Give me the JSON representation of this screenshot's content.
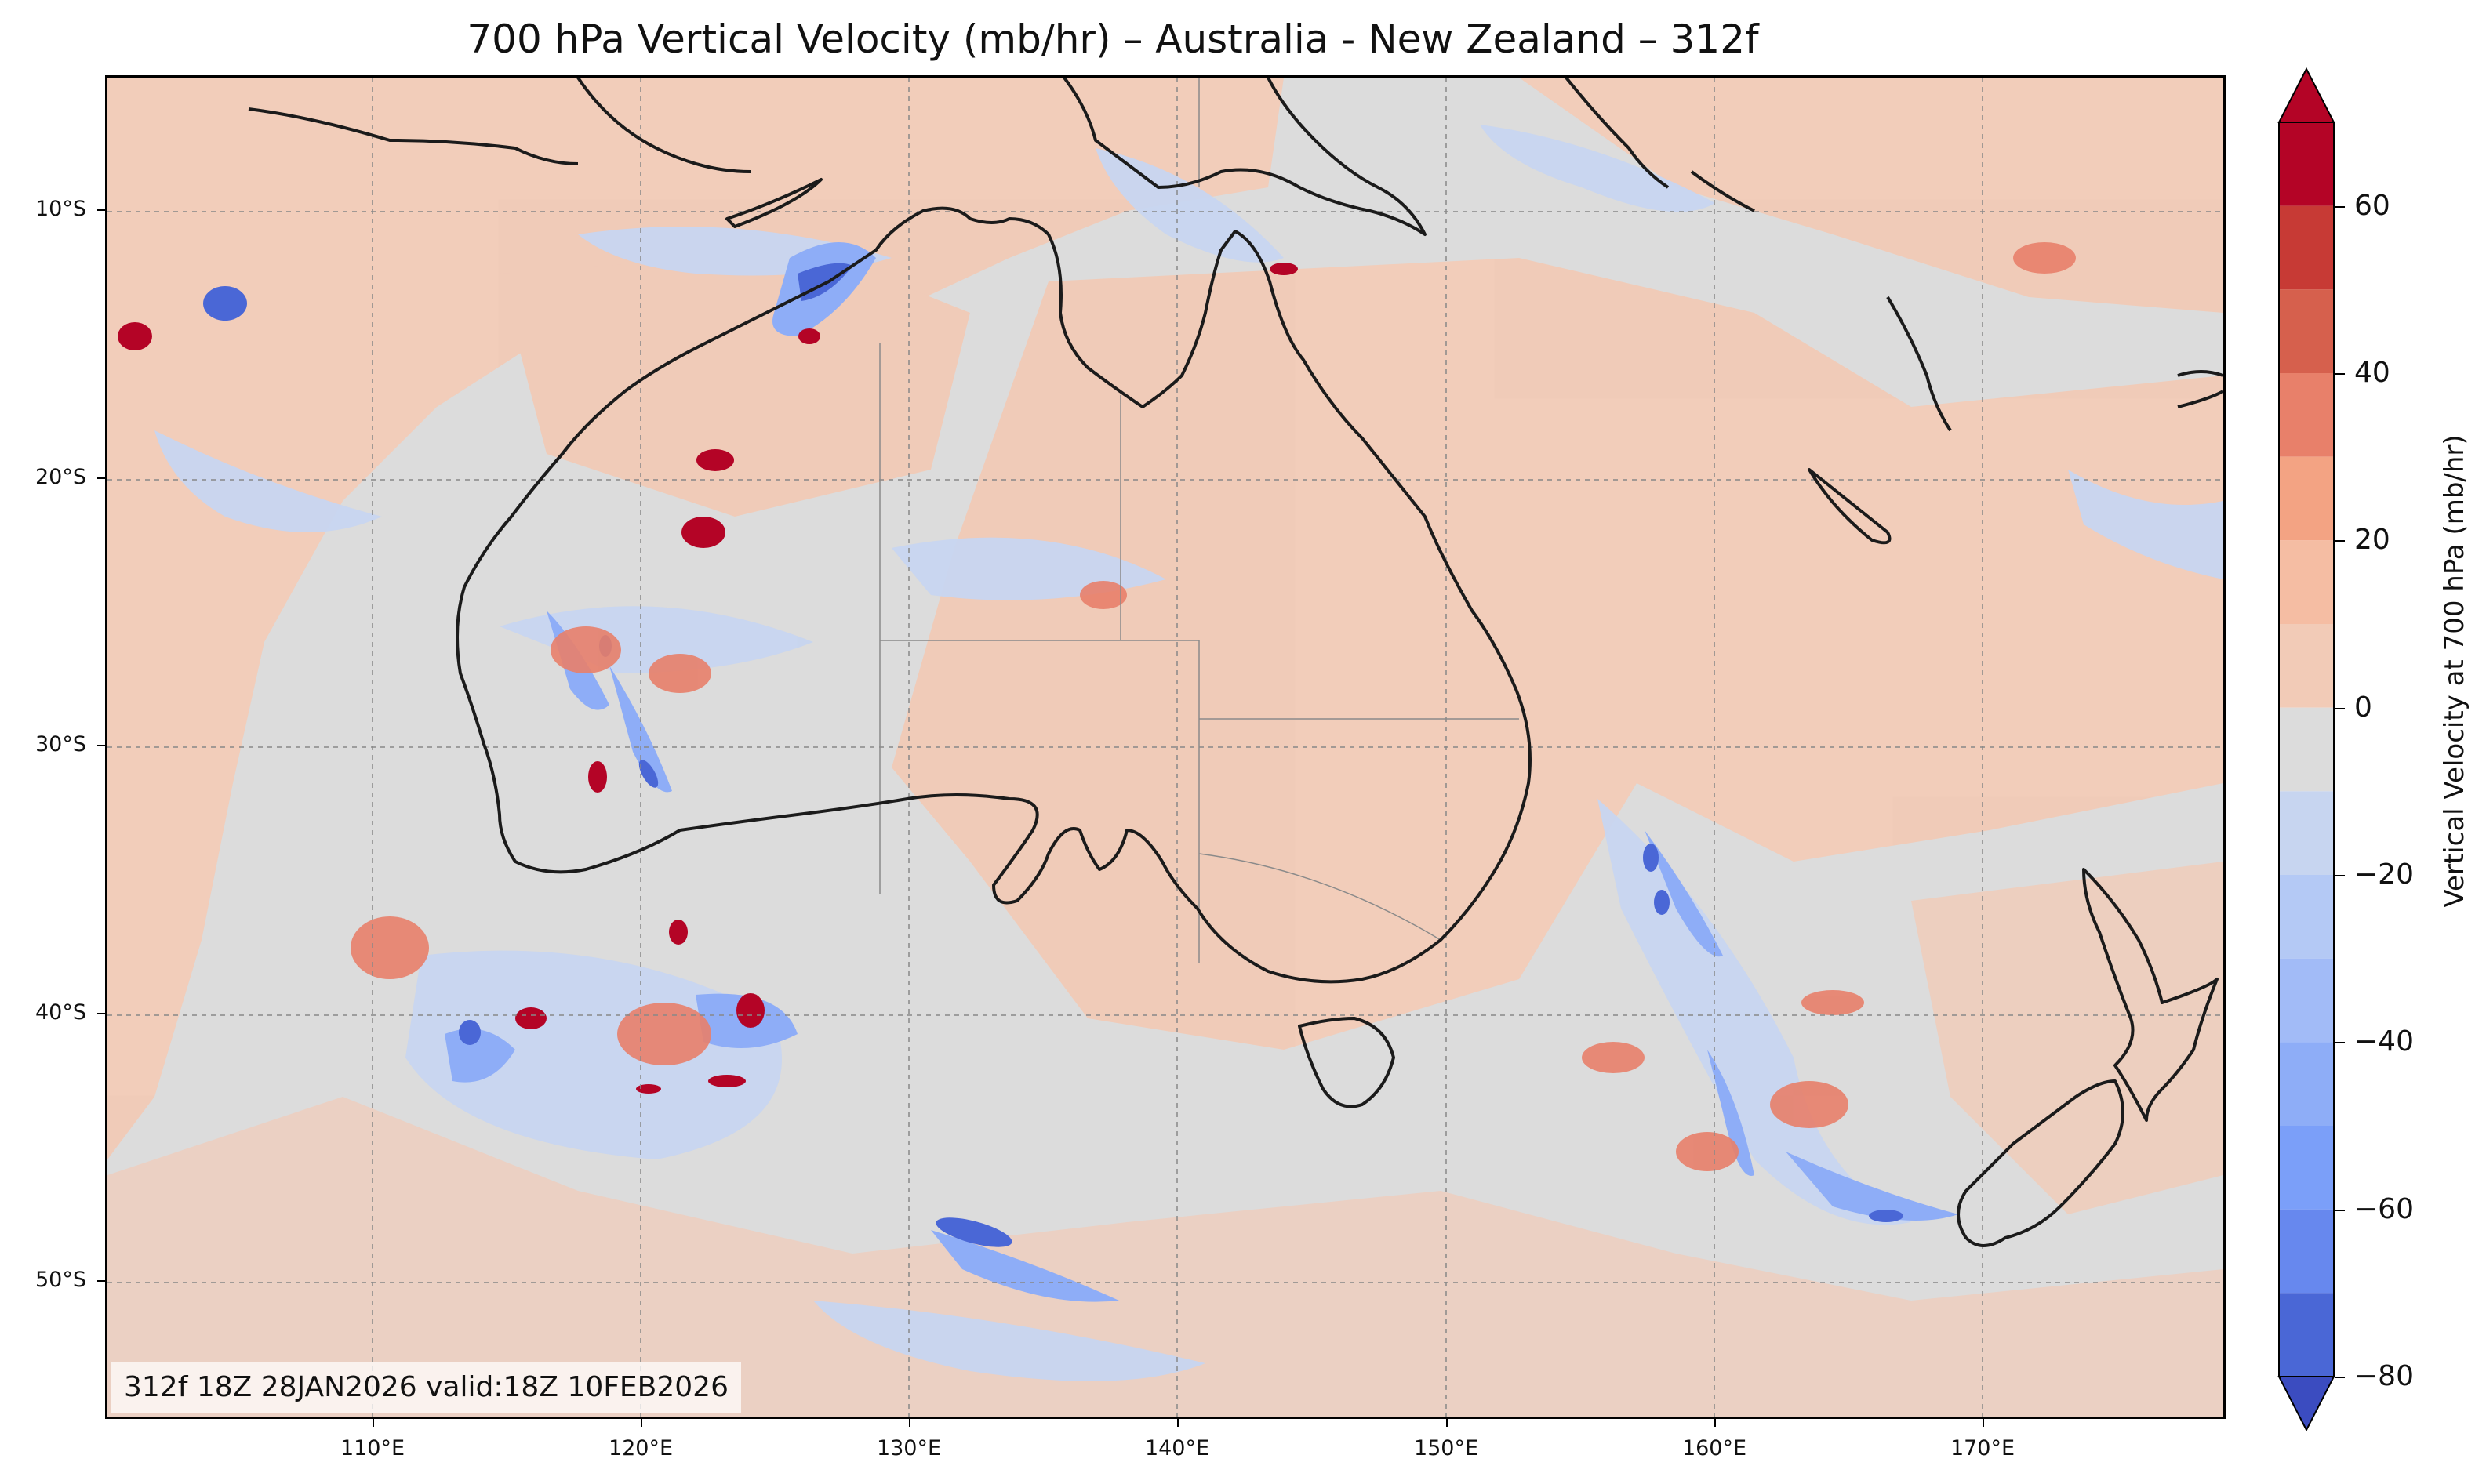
{
  "title": "700 hPa Vertical Velocity (mb/hr) – Australia - New Zealand – 312f",
  "footer": "312f 18Z 28JAN2026 valid:18Z 10FEB2026",
  "map": {
    "region": "Australia - New Zealand",
    "lon_range": [
      100,
      179
    ],
    "lat_range": [
      -55,
      -5
    ],
    "lat_ticks": [
      "10°S",
      "20°S",
      "30°S",
      "40°S",
      "50°S"
    ],
    "lon_ticks": [
      "110°E",
      "120°E",
      "130°E",
      "140°E",
      "150°E",
      "160°E",
      "170°E"
    ],
    "gridlines": true,
    "colormap": "coolwarm",
    "background_color": "#dcdcdc"
  },
  "colorbar": {
    "label": "Vertical Velocity at 700 hPa (mb/hr)",
    "tick_labels": [
      "60",
      "40",
      "20",
      "0",
      "−20",
      "−40",
      "−60",
      "−80"
    ],
    "range": [
      -80,
      70
    ],
    "extend": "both",
    "levels": [
      {
        "min": 60,
        "max": 70,
        "color": "#b40426"
      },
      {
        "min": 50,
        "max": 60,
        "color": "#c73a35"
      },
      {
        "min": 40,
        "max": 50,
        "color": "#d6604d"
      },
      {
        "min": 30,
        "max": 40,
        "color": "#e8806a"
      },
      {
        "min": 20,
        "max": 30,
        "color": "#f3a383"
      },
      {
        "min": 10,
        "max": 20,
        "color": "#f5bda3"
      },
      {
        "min": 0,
        "max": 10,
        "color": "#f2cbb7"
      },
      {
        "min": -10,
        "max": 0,
        "color": "#dcdcdc"
      },
      {
        "min": -20,
        "max": -10,
        "color": "#c7d5f0"
      },
      {
        "min": -30,
        "max": -20,
        "color": "#b4c9f5"
      },
      {
        "min": -40,
        "max": -30,
        "color": "#a2bbf7"
      },
      {
        "min": -50,
        "max": -40,
        "color": "#8eadf7"
      },
      {
        "min": -60,
        "max": -50,
        "color": "#7b9ff9"
      },
      {
        "min": -70,
        "max": -60,
        "color": "#6788ee"
      },
      {
        "min": -80,
        "max": -70,
        "color": "#4a67d6"
      }
    ],
    "over_color": "#b40426",
    "under_color": "#3b4cc0"
  }
}
